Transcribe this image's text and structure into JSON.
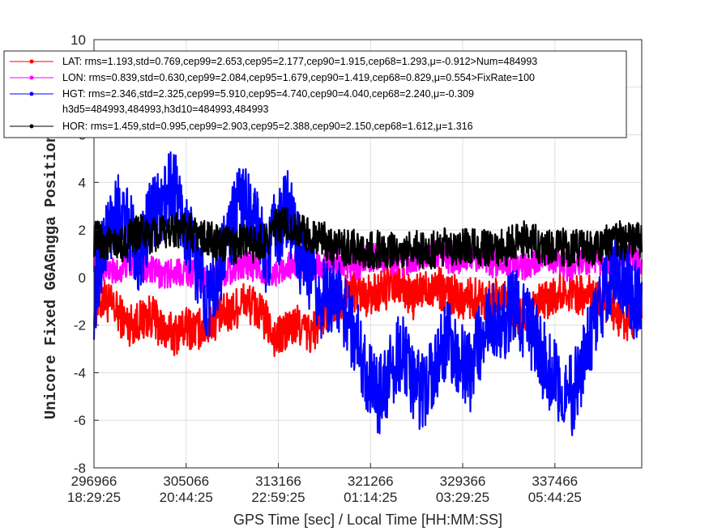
{
  "chart_data": {
    "type": "line",
    "xlabel": "GPS Time [sec] / Local Time [HH:MM:SS]",
    "ylabel": "Unicore Fixed GGAGngga Position [cm]",
    "xlim": [
      296966,
      345100
    ],
    "ylim": [
      -8,
      10
    ],
    "yticks": [
      -8,
      -6,
      -4,
      -2,
      0,
      2,
      4,
      6,
      8,
      10
    ],
    "xticks": [
      {
        "value": 296966,
        "gps": "296966",
        "local": "18:29:25"
      },
      {
        "value": 305066,
        "gps": "305066",
        "local": "20:44:25"
      },
      {
        "value": 313166,
        "gps": "313166",
        "local": "22:59:25"
      },
      {
        "value": 321266,
        "gps": "321266",
        "local": "01:14:25"
      },
      {
        "value": 329366,
        "gps": "329366",
        "local": "03:29:25"
      },
      {
        "value": 337466,
        "gps": "337466",
        "local": "05:44:25"
      }
    ],
    "grid": true,
    "legend": "top-left",
    "series": [
      {
        "name": "LAT",
        "color": "#ff0000",
        "legend_lines": [
          "LAT: rms=1.193,std=0.769,cep99=2.653,cep95=2.177,cep90=1.915,cep68=1.293,μ=-0.912>Num=484993"
        ],
        "x": [
          296966,
          297900,
          298900,
          300000,
          301000,
          302000,
          303000,
          304000,
          305000,
          306000,
          307000,
          308000,
          309000,
          310000,
          311000,
          312000,
          313000,
          314000,
          315000,
          316000,
          317000,
          318000,
          319000,
          320000,
          321000,
          322000,
          323000,
          324000,
          325000,
          326000,
          327000,
          328000,
          329000,
          330000,
          331000,
          332000,
          333000,
          334000,
          335000,
          336000,
          337000,
          338000,
          339000,
          340000,
          341000,
          342000,
          343000,
          344000,
          345100
        ],
        "y": [
          -1.2,
          -0.9,
          -1.4,
          -2.0,
          -1.8,
          -1.6,
          -2.2,
          -2.4,
          -2.1,
          -2.2,
          -2.0,
          -1.6,
          -1.5,
          -1.0,
          -1.2,
          -1.8,
          -2.6,
          -2.2,
          -2.0,
          -2.4,
          -1.7,
          -1.0,
          -0.8,
          -0.5,
          -0.8,
          -0.6,
          -0.4,
          -0.4,
          -0.9,
          -0.5,
          -0.3,
          -0.7,
          -0.8,
          -0.9,
          -0.8,
          -1.0,
          -0.7,
          -1.6,
          -1.8,
          -1.2,
          -0.9,
          -0.6,
          -0.5,
          -0.8,
          -0.6,
          -1.0,
          -1.6,
          -1.8,
          -1.2
        ]
      },
      {
        "name": "LON",
        "color": "#ff00ff",
        "legend_lines": [
          "LON: rms=0.839,std=0.630,cep99=2.084,cep95=1.679,cep90=1.419,cep68=0.829,μ=0.554>FixRate=100"
        ],
        "x": [
          296966,
          297900,
          298900,
          300000,
          301000,
          302000,
          303000,
          304000,
          305000,
          306000,
          307000,
          308000,
          309000,
          310000,
          311000,
          312000,
          313000,
          314000,
          315000,
          316000,
          317000,
          318000,
          319000,
          320000,
          321000,
          322000,
          323000,
          324000,
          325000,
          326000,
          327000,
          328000,
          329000,
          330000,
          331000,
          332000,
          333000,
          334000,
          335000,
          336000,
          337000,
          338000,
          339000,
          340000,
          341000,
          342000,
          343000,
          344000,
          345100
        ],
        "y": [
          0.8,
          0.4,
          0.2,
          0.6,
          0.5,
          0.3,
          0.1,
          0.2,
          0.3,
          0.1,
          -0.2,
          0.2,
          0.3,
          0.6,
          0.4,
          0.3,
          0.2,
          0.5,
          0.6,
          0.4,
          0.5,
          0.7,
          0.6,
          0.4,
          0.8,
          0.9,
          0.7,
          0.6,
          0.8,
          0.9,
          1.0,
          0.8,
          0.7,
          0.8,
          0.9,
          0.6,
          0.7,
          0.5,
          0.4,
          0.6,
          0.8,
          0.5,
          0.4,
          0.6,
          0.7,
          0.5,
          0.6,
          0.8,
          0.7
        ]
      },
      {
        "name": "HGT",
        "color": "#0000ff",
        "legend_lines": [
          "HGT: rms=2.346,std=2.325,cep99=5.910,cep95=4.740,cep90=4.040,cep68=2.240,μ=-0.309",
          "h3d5=484993,484993,h3d10=484993,484993"
        ],
        "x": [
          296966,
          297900,
          298900,
          300000,
          301000,
          302000,
          303000,
          304000,
          305000,
          306000,
          307000,
          308000,
          309000,
          310000,
          311000,
          312000,
          313000,
          314000,
          315000,
          316000,
          317000,
          318000,
          319000,
          320000,
          321000,
          322000,
          323000,
          324000,
          325000,
          326000,
          327000,
          328000,
          329000,
          330000,
          331000,
          332000,
          333000,
          334000,
          335000,
          336000,
          337000,
          338000,
          339000,
          340000,
          341000,
          342000,
          343000,
          344000,
          345100
        ],
        "y": [
          -1.0,
          1.5,
          3.0,
          2.0,
          1.0,
          2.5,
          3.0,
          4.0,
          2.0,
          0.5,
          -1.0,
          0.5,
          2.0,
          3.5,
          2.5,
          1.0,
          2.0,
          3.0,
          1.0,
          0.0,
          -1.0,
          -0.5,
          -1.5,
          -2.5,
          -4.0,
          -5.0,
          -4.0,
          -3.0,
          -4.5,
          -5.0,
          -3.5,
          -2.5,
          -3.5,
          -4.0,
          -2.5,
          -1.5,
          -2.0,
          -1.0,
          -2.0,
          -3.0,
          -4.0,
          -4.5,
          -5.0,
          -3.5,
          -2.0,
          -0.5,
          0.5,
          -0.5,
          -1.5
        ]
      },
      {
        "name": "HOR",
        "color": "#000000",
        "legend_lines": [
          "HOR: rms=1.459,std=0.995,cep99=2.903,cep95=2.388,cep90=2.150,cep68=1.612,μ=1.316"
        ],
        "x": [
          296966,
          297900,
          298900,
          300000,
          301000,
          302000,
          303000,
          304000,
          305000,
          306000,
          307000,
          308000,
          309000,
          310000,
          311000,
          312000,
          313000,
          314000,
          315000,
          316000,
          317000,
          318000,
          319000,
          320000,
          321000,
          322000,
          323000,
          324000,
          325000,
          326000,
          327000,
          328000,
          329000,
          330000,
          331000,
          332000,
          333000,
          334000,
          335000,
          336000,
          337000,
          338000,
          339000,
          340000,
          341000,
          342000,
          343000,
          344000,
          345100
        ],
        "y": [
          1.6,
          1.5,
          1.2,
          1.6,
          1.9,
          1.7,
          1.8,
          2.1,
          2.0,
          1.8,
          1.6,
          1.4,
          1.3,
          1.5,
          1.4,
          1.6,
          2.1,
          2.2,
          1.9,
          1.8,
          1.6,
          1.3,
          1.2,
          1.3,
          1.1,
          1.2,
          1.1,
          1.2,
          1.3,
          1.1,
          1.2,
          1.3,
          1.3,
          1.4,
          1.2,
          1.3,
          1.2,
          1.5,
          1.6,
          1.4,
          1.2,
          1.3,
          1.2,
          1.3,
          1.2,
          1.4,
          1.6,
          1.5,
          1.5
        ]
      }
    ]
  }
}
